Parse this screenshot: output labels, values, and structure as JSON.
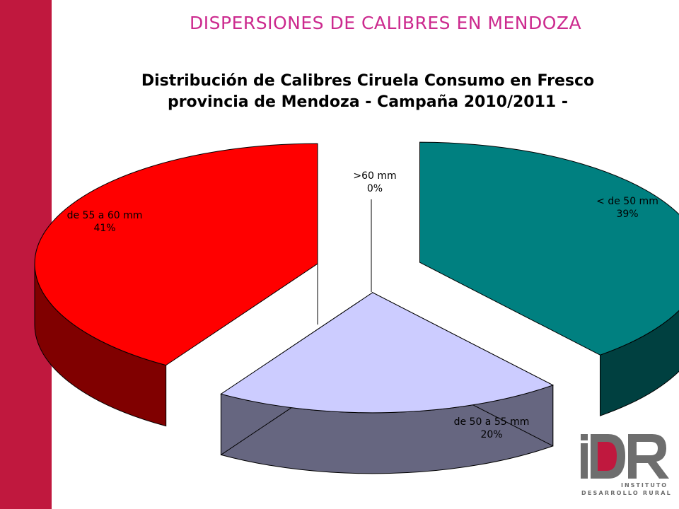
{
  "slide": {
    "title": "DISPERSIONES DE CALIBRES EN MENDOZA",
    "accent_color": "#c0183e",
    "title_color": "#cc2a8e"
  },
  "chart_data": {
    "type": "pie",
    "title_lines": [
      "Distribución de Calibres Ciruela Consumo en Fresco",
      "provincia de Mendoza - Campaña 2010/2011 -"
    ],
    "slices": [
      {
        "name": "< de 50 mm",
        "value": 39,
        "value_label": "39%",
        "top_color": "#008080",
        "side_color": "#004040"
      },
      {
        "name": "de 50 a 55 mm",
        "value": 20,
        "value_label": "20%",
        "top_color": "#ccccff",
        "side_color": "#666680"
      },
      {
        "name": "de 55 a 60 mm",
        "value": 41,
        "value_label": "41%",
        "top_color": "#ff0000",
        "side_color": "#800000"
      },
      {
        "name": ">60 mm",
        "value": 0,
        "value_label": "0%",
        "top_color": "#ffffff",
        "side_color": "#808080"
      }
    ],
    "style": "3d-exploded"
  },
  "logo": {
    "letters": "iDR",
    "line1": "INSTITUTO",
    "line2": "DESARROLLO RURAL",
    "gray": "#6e6e6e",
    "red": "#c0183e"
  }
}
